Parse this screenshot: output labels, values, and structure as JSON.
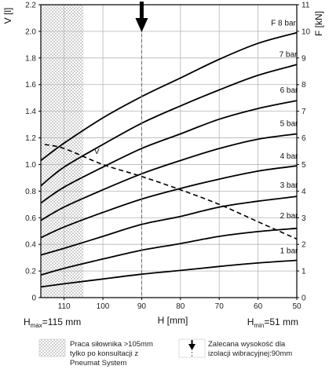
{
  "chart_data": {
    "type": "line",
    "x_axis": {
      "label": "H [mm]",
      "ticks": [
        110,
        100,
        90,
        80,
        70,
        60,
        50
      ],
      "range": [
        116,
        50
      ],
      "reversed": true
    },
    "y_left": {
      "label": "V [l]",
      "ticks": [
        "0",
        "0.2",
        "0.4",
        "0.6",
        "0.8",
        "1.0",
        "1.2",
        "1.4",
        "1.6",
        "1.8",
        "2.0",
        "2.2"
      ],
      "range": [
        0,
        2.2
      ]
    },
    "y_right": {
      "label": "F [kN]",
      "ticks": [
        "0",
        "1",
        "2",
        "3",
        "4",
        "5",
        "6",
        "7",
        "8",
        "9",
        "10",
        "11"
      ],
      "range": [
        0,
        11
      ]
    },
    "grid": true,
    "series": [
      {
        "name": "1 bar",
        "axis": "right",
        "x": [
          116,
          110,
          100,
          90,
          80,
          70,
          60,
          50
        ],
        "y": [
          0.4,
          0.52,
          0.7,
          0.88,
          1.02,
          1.17,
          1.3,
          1.4
        ]
      },
      {
        "name": "2 bar",
        "axis": "right",
        "x": [
          116,
          110,
          100,
          90,
          80,
          70,
          60,
          50
        ],
        "y": [
          0.85,
          1.1,
          1.45,
          1.78,
          2.03,
          2.3,
          2.48,
          2.6
        ]
      },
      {
        "name": "3 bar",
        "axis": "right",
        "x": [
          116,
          110,
          100,
          90,
          80,
          70,
          60,
          50
        ],
        "y": [
          1.6,
          1.85,
          2.3,
          2.75,
          3.05,
          3.4,
          3.62,
          3.8
        ]
      },
      {
        "name": "4 bar",
        "axis": "right",
        "x": [
          116,
          110,
          100,
          90,
          80,
          70,
          60,
          50
        ],
        "y": [
          2.25,
          2.65,
          3.2,
          3.7,
          4.1,
          4.45,
          4.75,
          4.95
        ]
      },
      {
        "name": "5 bar",
        "axis": "right",
        "x": [
          116,
          110,
          100,
          90,
          80,
          70,
          60,
          50
        ],
        "y": [
          2.9,
          3.4,
          4.05,
          4.65,
          5.15,
          5.6,
          5.95,
          6.15
        ]
      },
      {
        "name": "6 bar",
        "axis": "right",
        "x": [
          116,
          110,
          100,
          90,
          80,
          70,
          60,
          50
        ],
        "y": [
          3.55,
          4.15,
          4.9,
          5.6,
          6.15,
          6.7,
          7.1,
          7.4
        ]
      },
      {
        "name": "7 bar",
        "axis": "right",
        "x": [
          116,
          110,
          100,
          90,
          80,
          70,
          60,
          50
        ],
        "y": [
          4.2,
          4.9,
          5.75,
          6.55,
          7.2,
          7.8,
          8.35,
          8.75
        ]
      },
      {
        "name": "F 8 bar",
        "axis": "right",
        "x": [
          116,
          110,
          100,
          90,
          80,
          70,
          60,
          50
        ],
        "y": [
          5.15,
          5.8,
          6.75,
          7.55,
          8.25,
          8.95,
          9.55,
          9.95
        ]
      },
      {
        "name": "V",
        "axis": "left",
        "dashed": true,
        "x": [
          115,
          110,
          100,
          90,
          80,
          70,
          60,
          50
        ],
        "y": [
          1.15,
          1.12,
          1.0,
          0.91,
          0.81,
          0.7,
          0.57,
          0.44
        ]
      }
    ],
    "v_label": "V",
    "hatched_region": {
      "x_from": 116,
      "x_to": 105
    },
    "marker_x": 90,
    "h_max_label": {
      "base": "H",
      "sub": "max",
      "rest": "=115 mm"
    },
    "h_min_label": {
      "base": "H",
      "sub": "min",
      "rest": "=51 mm"
    }
  },
  "legend": {
    "hatch_text": [
      "Praca siłownika >105mm",
      "tylko po konsultacji z",
      "Pneumat System"
    ],
    "arrow_text": [
      "Zalecana wysokość dla",
      "izolacji wibracyjnej:90mm"
    ]
  },
  "colors": {
    "line": "#000000",
    "grid": "#b5b5b5",
    "hatch": "#cfcfcf"
  }
}
